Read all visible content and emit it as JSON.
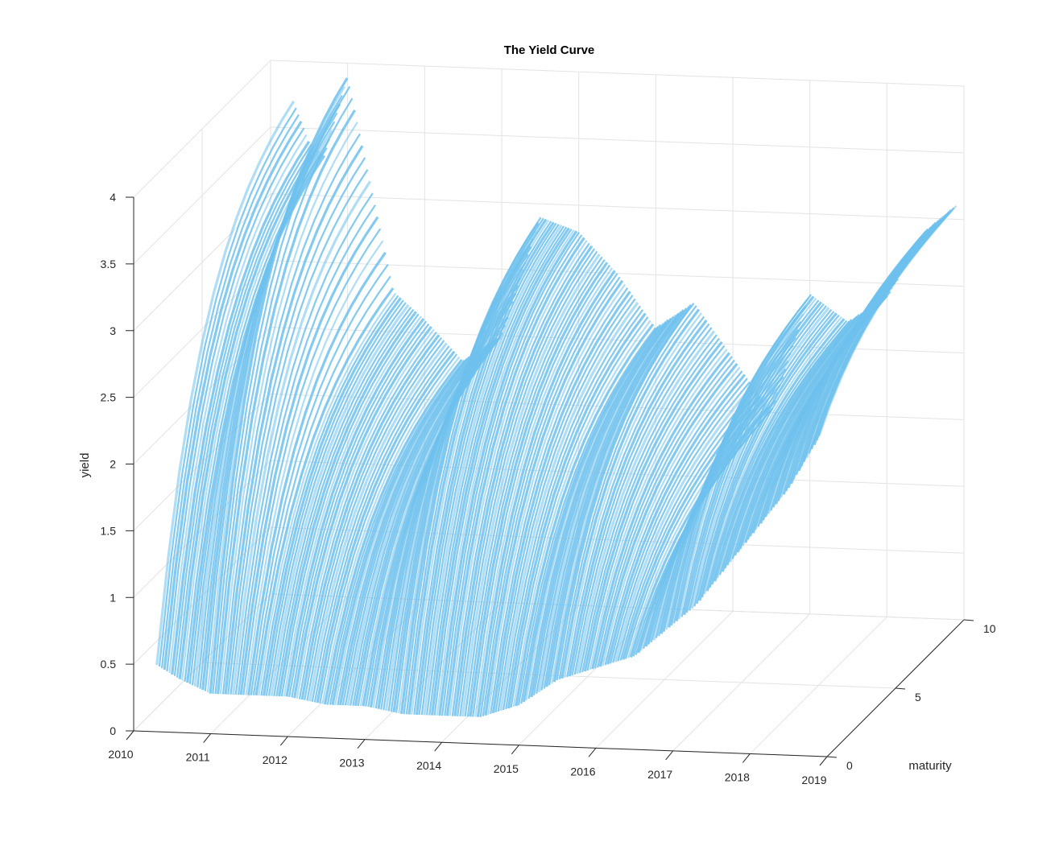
{
  "chart_data": {
    "type": "surface",
    "title": "The Yield Curve",
    "xlabel": "",
    "ylabel": "maturity",
    "zlabel": "yield",
    "xlim": [
      2010,
      2019
    ],
    "ylim": [
      0,
      10
    ],
    "zlim": [
      0,
      4
    ],
    "x_ticks": [
      "2010",
      "2011",
      "2012",
      "2013",
      "2014",
      "2015",
      "2016",
      "2017",
      "2018",
      "2019"
    ],
    "y_ticks": [
      "0",
      "5",
      "10"
    ],
    "z_ticks": [
      "0",
      "0.5",
      "1",
      "1.5",
      "2",
      "2.5",
      "3",
      "3.5",
      "4"
    ],
    "grid": true,
    "surface_color": "#6ec1ed",
    "series": [
      {
        "name": "",
        "short_end_yield": {
          "x": [
            2010.3,
            2010.6,
            2011.0,
            2011.3,
            2011.6,
            2012.0,
            2012.5,
            2013.0,
            2013.5,
            2014.0,
            2014.5,
            2015.0,
            2015.5,
            2016.0,
            2016.5,
            2016.9,
            2017.3,
            2017.7,
            2018.1,
            2018.5,
            2018.9
          ],
          "y": [
            0.5,
            0.4,
            0.3,
            0.3,
            0.3,
            0.3,
            0.25,
            0.25,
            0.2,
            0.2,
            0.2,
            0.3,
            0.5,
            0.6,
            0.7,
            0.9,
            1.1,
            1.4,
            1.7,
            2.0,
            2.4
          ]
        },
        "long_end_yield": {
          "x": [
            2010.0,
            2010.3,
            2010.5,
            2010.7,
            2011.0,
            2011.3,
            2011.6,
            2012.0,
            2012.5,
            2013.0,
            2013.5,
            2014.0,
            2014.5,
            2015.0,
            2015.5,
            2016.0,
            2016.5,
            2017.0,
            2017.5,
            2018.0,
            2018.5,
            2018.9
          ],
          "y": [
            3.1,
            3.7,
            3.4,
            3.3,
            3.9,
            3.1,
            2.3,
            2.1,
            1.8,
            2.0,
            2.9,
            2.8,
            2.5,
            2.1,
            2.3,
            1.9,
            1.5,
            2.4,
            2.2,
            2.4,
            2.9,
            3.1
          ]
        }
      }
    ]
  }
}
